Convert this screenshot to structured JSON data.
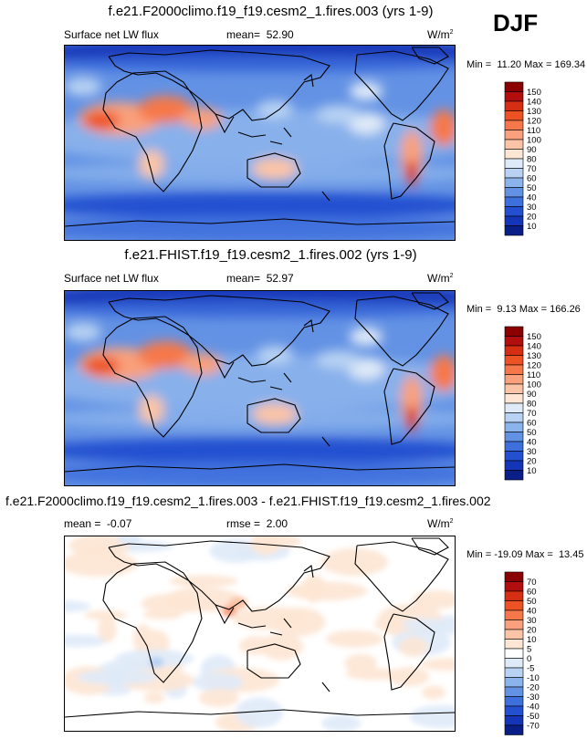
{
  "season": "DJF",
  "chart_data": [
    {
      "type": "heatmap",
      "title": "f.e21.F2000climo.f19_f19.cesm2_1.fires.003 (yrs 1-9)",
      "variable": "Surface net LW flux",
      "stat_label": "mean=",
      "stat_value": "52.90",
      "units_base": "W/m",
      "units_exp": "2",
      "min_label": "Min =",
      "min": "11.20",
      "max_label": "Max =",
      "max": "169.34",
      "colorbar_levels": [
        "150",
        "140",
        "130",
        "120",
        "110",
        "100",
        "90",
        "80",
        "70",
        "60",
        "50",
        "40",
        "30",
        "20",
        "10"
      ],
      "colorbar_colors": [
        "#8b0000",
        "#b30e0e",
        "#d62e12",
        "#ed5224",
        "#f6784a",
        "#f9a07c",
        "#fbc4a6",
        "#fde6d4",
        "#dfeaf8",
        "#b8d2f3",
        "#8cb4ec",
        "#6392e4",
        "#3d6fdd",
        "#234fd0",
        "#1435b8",
        "#0a1e88"
      ]
    },
    {
      "type": "heatmap",
      "title": "f.e21.FHIST.f19_f19.cesm2_1.fires.002 (yrs 1-9)",
      "variable": "Surface net LW flux",
      "stat_label": "mean=",
      "stat_value": "52.97",
      "units_base": "W/m",
      "units_exp": "2",
      "min_label": "Min =",
      "min": "9.13",
      "max_label": "Max =",
      "max": "166.26",
      "colorbar_levels": [
        "150",
        "140",
        "130",
        "120",
        "110",
        "100",
        "90",
        "80",
        "70",
        "60",
        "50",
        "40",
        "30",
        "20",
        "10"
      ],
      "colorbar_colors": [
        "#8b0000",
        "#b30e0e",
        "#d62e12",
        "#ed5224",
        "#f6784a",
        "#f9a07c",
        "#fbc4a6",
        "#fde6d4",
        "#dfeaf8",
        "#b8d2f3",
        "#8cb4ec",
        "#6392e4",
        "#3d6fdd",
        "#234fd0",
        "#1435b8",
        "#0a1e88"
      ]
    },
    {
      "type": "heatmap",
      "title": "f.e21.F2000climo.f19_f19.cesm2_1.fires.003 - f.e21.FHIST.f19_f19.cesm2_1.fires.002",
      "mean_label": "mean =",
      "mean": "-0.07",
      "rmse_label": "rmse =",
      "rmse": "2.00",
      "units_base": "W/m",
      "units_exp": "2",
      "min_label": "Min =",
      "min": "-19.09",
      "max_label": "Max =",
      "max": "13.45",
      "colorbar_levels": [
        "70",
        "60",
        "50",
        "40",
        "30",
        "20",
        "10",
        "5",
        "0",
        "-5",
        "-10",
        "-20",
        "-30",
        "-40",
        "-50",
        "-70"
      ],
      "colorbar_colors": [
        "#8b0000",
        "#b30e0e",
        "#d62e12",
        "#ed5224",
        "#f6784a",
        "#f9a07c",
        "#fbc4a6",
        "#fde6d4",
        "#ffffff",
        "#dfeaf8",
        "#b8d2f3",
        "#8cb4ec",
        "#6392e4",
        "#3d6fdd",
        "#234fd0",
        "#1435b8",
        "#0a1e88"
      ]
    }
  ]
}
